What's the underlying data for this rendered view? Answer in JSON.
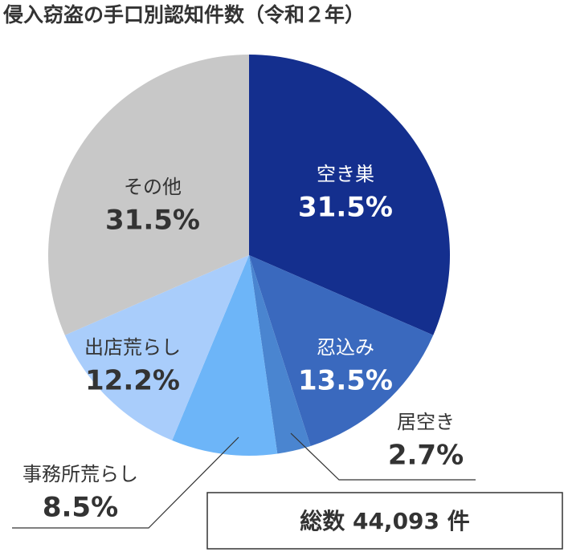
{
  "chart_data": {
    "type": "pie",
    "title": "侵入窃盗の手口別認知件数（令和２年）",
    "categories": [
      "空き巣",
      "忍込み",
      "居空き",
      "事務所荒らし",
      "出店荒らし",
      "その他"
    ],
    "values": [
      31.5,
      13.5,
      2.7,
      8.5,
      12.2,
      31.5
    ],
    "value_labels": [
      "31.5%",
      "13.5%",
      "2.7%",
      "8.5%",
      "12.2%",
      "31.5%"
    ],
    "colors": [
      "#142f8e",
      "#3a69be",
      "#4a85d0",
      "#6db5f8",
      "#a9cdfb",
      "#c8c8c8"
    ],
    "annotation": "総数 44,093 件"
  }
}
